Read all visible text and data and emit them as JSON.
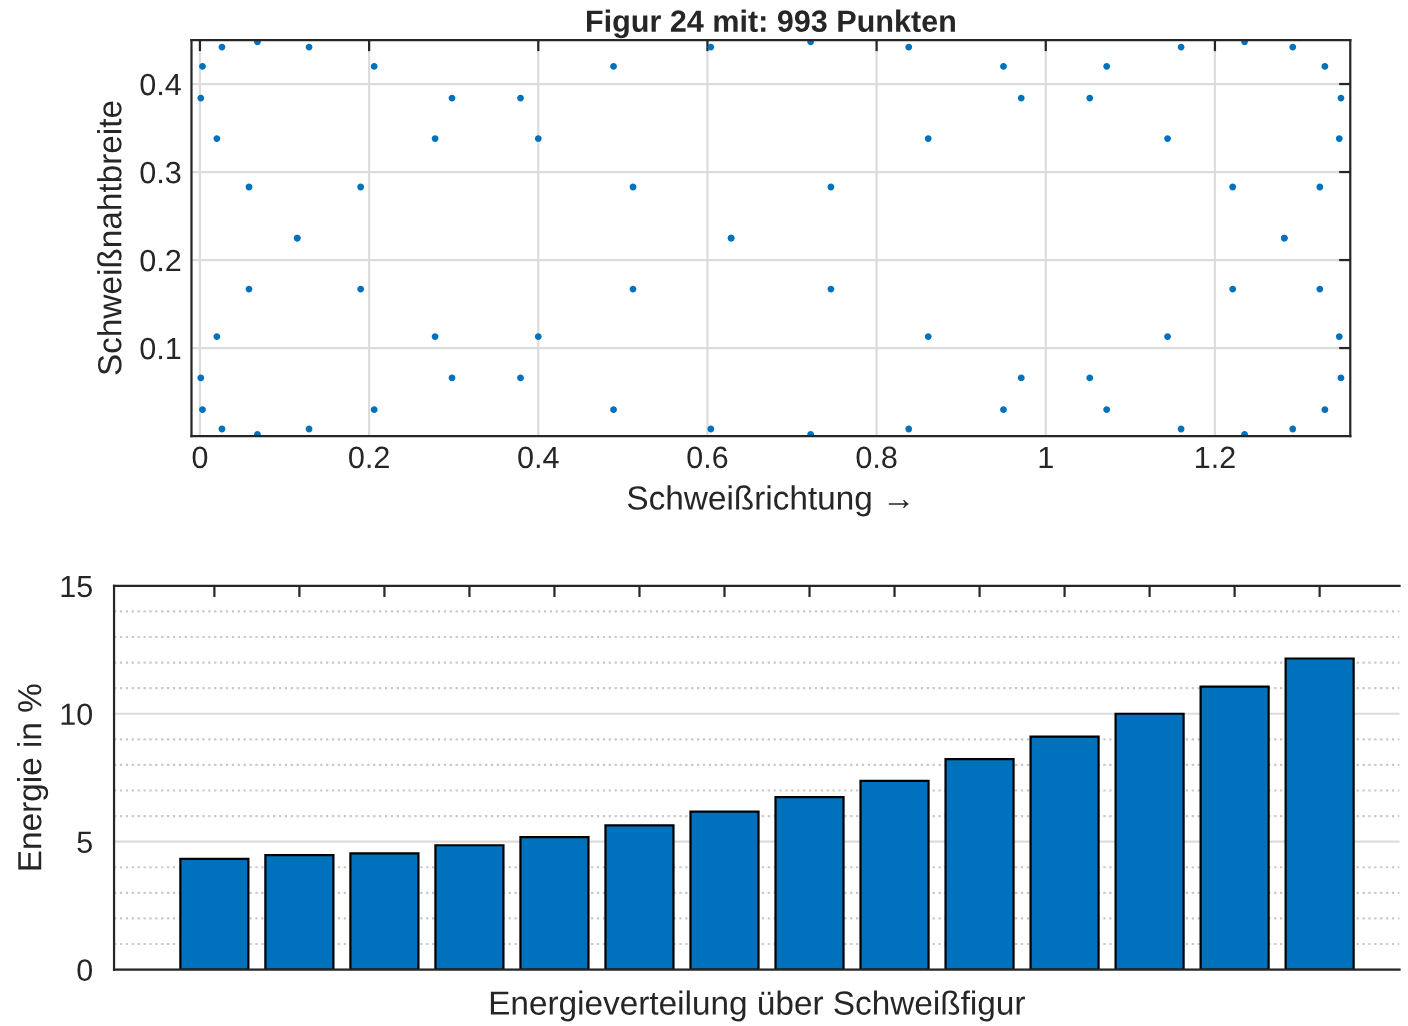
{
  "chart_data": [
    {
      "type": "scatter",
      "title": "Figur 24 mit: 993 Punkten",
      "xlabel": "Schweißrichtung →",
      "ylabel": "Schweißnahtbreite",
      "x": [
        0.628,
        0.512,
        0.4,
        0.298,
        0.206,
        0.129,
        0.068,
        0.026,
        0.003,
        0.001,
        0.02,
        0.058,
        0.115,
        0.19,
        0.278,
        0.379,
        0.489,
        0.604,
        0.722,
        0.838,
        0.95,
        1.052,
        1.144,
        1.221,
        1.282,
        1.324,
        1.347,
        1.349,
        1.33,
        1.292,
        1.235,
        1.16,
        1.072,
        0.971,
        0.861,
        0.746,
        0.628,
        0.512,
        0.4,
        0.298,
        0.206,
        0.129,
        0.068,
        0.026,
        0.003,
        0.001,
        0.02,
        0.058,
        0.115,
        0.19,
        0.278,
        0.379,
        0.489,
        0.604,
        0.722,
        0.838,
        0.95,
        1.052,
        1.144,
        1.221,
        1.282,
        1.324,
        1.347,
        1.349,
        1.33,
        1.292,
        1.235,
        1.16,
        1.072,
        0.971,
        0.861,
        0.746
      ],
      "series": [
        {
          "color": "#0072bd",
          "values": [
            0.225,
            0.283,
            0.338,
            0.384,
            0.42,
            0.442,
            0.448,
            0.442,
            0.42,
            0.384,
            0.338,
            0.283,
            0.225,
            0.167,
            0.113,
            0.066,
            0.03,
            0.008,
            0.002,
            0.008,
            0.03,
            0.066,
            0.113,
            0.167,
            0.225,
            0.283,
            0.338,
            0.384,
            0.42,
            0.442,
            0.448,
            0.442,
            0.42,
            0.384,
            0.338,
            0.283,
            0.225,
            0.167,
            0.113,
            0.066,
            0.03,
            0.008,
            0.002,
            0.008,
            0.03,
            0.066,
            0.113,
            0.167,
            0.225,
            0.283,
            0.338,
            0.384,
            0.42,
            0.442,
            0.448,
            0.442,
            0.42,
            0.384,
            0.338,
            0.283,
            0.225,
            0.167,
            0.113,
            0.066,
            0.03,
            0.008,
            0.002,
            0.008,
            0.03,
            0.066,
            0.113,
            0.167
          ]
        }
      ],
      "marker": "circle",
      "xlim": [
        -0.01,
        1.36
      ],
      "ylim": [
        0,
        0.45
      ],
      "xticks": [
        0,
        0.2,
        0.4,
        0.6,
        0.8,
        1,
        1.2
      ],
      "yticks": [
        0.1,
        0.2,
        0.3,
        0.4
      ],
      "grid": true
    },
    {
      "type": "bar",
      "xlabel": "Energieverteilung über Schweißfigur",
      "ylabel": "Energie in %",
      "categories": [
        null,
        null,
        null,
        null,
        null,
        null,
        null,
        null,
        null,
        null,
        null,
        null,
        null,
        null
      ],
      "values": [
        4.33,
        4.47,
        4.54,
        4.86,
        5.18,
        5.64,
        6.17,
        6.74,
        7.38,
        8.23,
        9.11,
        10.0,
        11.06,
        12.16
      ],
      "color": "#0072bd",
      "ylim": [
        0,
        15
      ],
      "yticks": [
        0,
        5,
        10,
        15
      ],
      "grid": "y"
    }
  ]
}
